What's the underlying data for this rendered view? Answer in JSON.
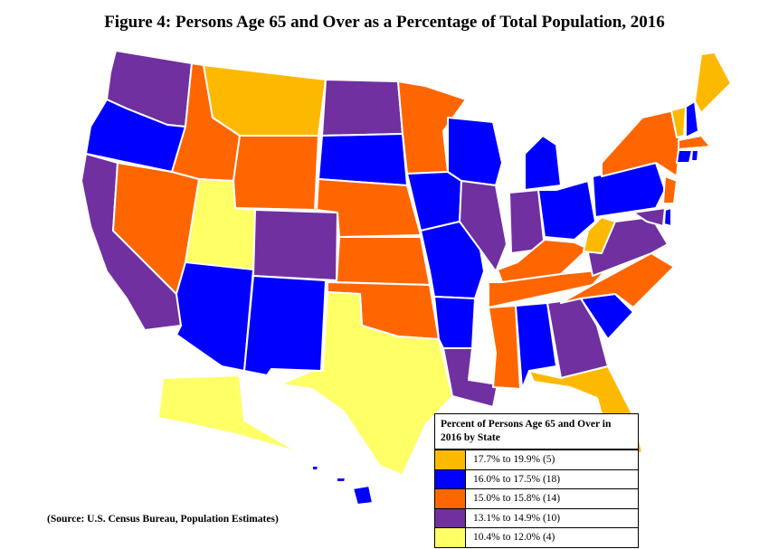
{
  "title": "Figure 4:  Persons Age 65 and Over as a Percentage of Total Population, 2016",
  "source": "(Source: U.S. Census Bureau, Population  Estimates)",
  "legend": {
    "heading": "Percent of Persons Age 65 and Over in 2016 by State",
    "items": [
      {
        "label": "17.7% to 19.9% (5)",
        "color": "#fdb900"
      },
      {
        "label": "16.0% to 17.5% (18)",
        "color": "#0000ff"
      },
      {
        "label": "15.0% to 15.8% (14)",
        "color": "#ff6600"
      },
      {
        "label": "13.1% to 14.9% (10)",
        "color": "#7030a0"
      },
      {
        "label": "10.4% to 12.0% (4)",
        "color": "#ffff66"
      }
    ]
  },
  "states": {
    "WA": 3,
    "OR": 1,
    "CA": 3,
    "NV": 2,
    "ID": 2,
    "MT": 0,
    "WY": 2,
    "UT": 4,
    "AZ": 1,
    "CO": 3,
    "NM": 1,
    "ND": 3,
    "SD": 1,
    "NE": 2,
    "KS": 2,
    "OK": 2,
    "TX": 4,
    "MN": 2,
    "IA": 1,
    "MO": 1,
    "AR": 1,
    "LA": 3,
    "WI": 1,
    "IL": 3,
    "MI": 1,
    "IN": 3,
    "OH": 1,
    "KY": 2,
    "TN": 2,
    "MS": 2,
    "AL": 1,
    "GA": 3,
    "FL": 0,
    "SC": 1,
    "NC": 2,
    "VA": 3,
    "WV": 0,
    "PA": 1,
    "NY": 2,
    "VT": 0,
    "NH": 1,
    "ME": 0,
    "MA": 2,
    "CT": 1,
    "RI": 1,
    "NJ": 2,
    "DE": 1,
    "MD": 3,
    "AK": 4,
    "HI": 1
  }
}
